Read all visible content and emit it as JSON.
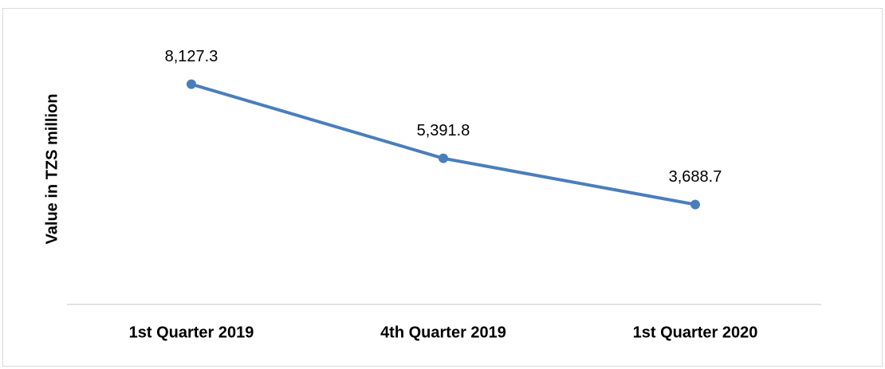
{
  "chart_data": {
    "type": "line",
    "y_label": "Value in TZS million",
    "categories": [
      "1st Quarter 2019",
      "4th Quarter 2019",
      "1st Quarter 2020"
    ],
    "values": [
      8127.3,
      5391.8,
      3688.7
    ],
    "value_labels": [
      "8,127.3",
      "5,391.8",
      "3,688.7"
    ],
    "color": "#4a7ebb",
    "ylim": [
      0,
      10000
    ],
    "grid": false
  }
}
